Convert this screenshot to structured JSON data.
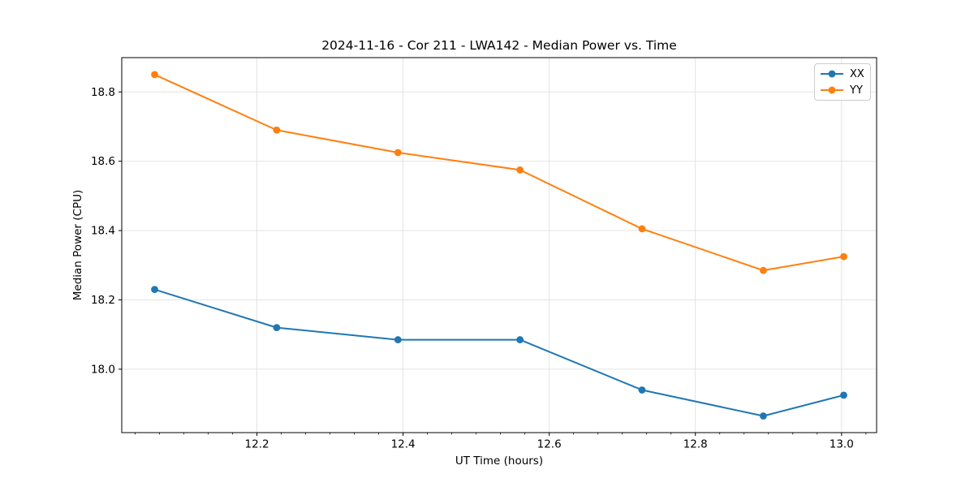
{
  "window": {
    "background": "#ffffff",
    "text_color": "#000000"
  },
  "chart_data": {
    "type": "line",
    "title": "2024-11-16 - Cor 211 - LWA142 - Median Power vs. Time",
    "xlabel": "UT Time (hours)",
    "ylabel": "Median Power (CPU)",
    "x": [
      12.06,
      12.227,
      12.393,
      12.56,
      12.727,
      12.893,
      13.003
    ],
    "series": [
      {
        "name": "XX",
        "color": "#1f77b4",
        "marker": "circle",
        "values": [
          18.23,
          18.12,
          18.085,
          18.085,
          17.94,
          17.865,
          17.925
        ]
      },
      {
        "name": "YY",
        "color": "#ff7f0e",
        "marker": "circle",
        "values": [
          18.85,
          18.69,
          18.625,
          18.575,
          18.405,
          18.285,
          18.325
        ]
      }
    ],
    "xlim": [
      12.015,
      13.048
    ],
    "ylim": [
      17.817,
      18.899
    ],
    "xticks": [
      12.2,
      12.4,
      12.6,
      12.8,
      13.0
    ],
    "yticks": [
      18.0,
      18.2,
      18.4,
      18.6,
      18.8
    ],
    "x_minor_tick_step": 0.0333333,
    "tick_label_decimals": 1,
    "grid": true,
    "grid_color": "#e0e0e0",
    "axis_color": "#000000",
    "legend": {
      "position": "upper right",
      "entries": [
        "XX",
        "YY"
      ]
    }
  }
}
